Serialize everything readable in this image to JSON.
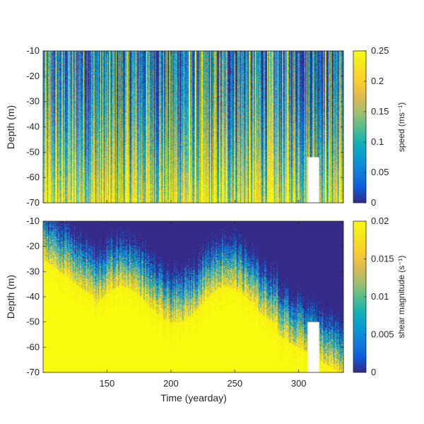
{
  "chart_data": [
    {
      "type": "heatmap",
      "variable": "speed",
      "xlabel": "",
      "ylabel": "Depth (m)",
      "xlim": [
        100,
        335
      ],
      "ylim": [
        -70,
        -10
      ],
      "xticks": [
        150,
        200,
        250,
        300
      ],
      "xtick_labels": [
        "",
        "",
        "",
        ""
      ],
      "yticks": [
        -10,
        -20,
        -30,
        -40,
        -50,
        -60,
        -70
      ],
      "ytick_labels": [
        "-10",
        "-20",
        "-30",
        "-40",
        "-50",
        "-60",
        "-70"
      ],
      "colorbar": {
        "label": "speed (ms⁻¹)",
        "range": [
          0,
          0.25
        ],
        "ticks": [
          0,
          0.05,
          0.1,
          0.15,
          0.2,
          0.25
        ],
        "tick_labels": [
          "0",
          "0.05",
          "0.1",
          "0.15",
          "0.2",
          "0.25"
        ],
        "colormap": "parula"
      },
      "gap": {
        "x": [
          307,
          316
        ],
        "y": [
          -70,
          -52
        ]
      }
    },
    {
      "type": "heatmap",
      "variable": "shear magnitude",
      "xlabel": "Time (yearday)",
      "ylabel": "Depth (m)",
      "xlim": [
        100,
        335
      ],
      "ylim": [
        -70,
        -10
      ],
      "xticks": [
        150,
        200,
        250,
        300
      ],
      "xtick_labels": [
        "150",
        "200",
        "250",
        "300"
      ],
      "yticks": [
        -10,
        -20,
        -30,
        -40,
        -50,
        -60,
        -70
      ],
      "ytick_labels": [
        "-10",
        "-20",
        "-30",
        "-40",
        "-50",
        "-60",
        "-70"
      ],
      "colorbar": {
        "label": "shear magnitude (s⁻¹)",
        "range": [
          0,
          0.02
        ],
        "ticks": [
          0,
          0.005,
          0.01,
          0.015,
          0.02
        ],
        "tick_labels": [
          "0",
          "0.005",
          "0.01",
          "0.015",
          "0.02"
        ],
        "colormap": "parula"
      },
      "gap": {
        "x": [
          307,
          316
        ],
        "y": [
          -70,
          -50
        ]
      }
    }
  ]
}
